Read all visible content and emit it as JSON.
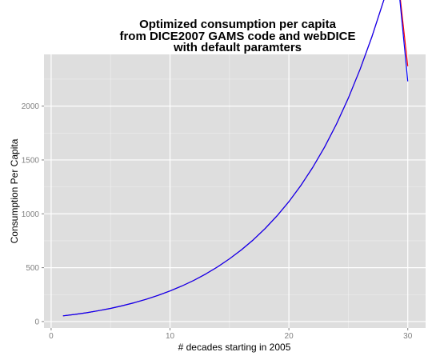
{
  "chart_data": {
    "type": "line",
    "title_lines": [
      "Optimized consumption per capita",
      "from DICE2007 GAMS code and webDICE",
      "with default paramters"
    ],
    "xlabel": "# decades starting in 2005",
    "ylabel": "Consumption Per Capita",
    "xlim": [
      -0.6,
      31.5
    ],
    "ylim": [
      -60,
      2480
    ],
    "xticks": [
      0,
      10,
      20,
      30
    ],
    "yticks": [
      0,
      500,
      1000,
      1500,
      2000
    ],
    "grid": true,
    "legend": "none",
    "panel_color": "#dedede",
    "x": [
      1,
      2,
      3,
      4,
      5,
      6,
      7,
      8,
      9,
      10,
      11,
      12,
      13,
      14,
      15,
      16,
      17,
      18,
      19,
      20,
      21,
      22,
      23,
      24,
      25,
      26,
      27,
      28,
      29,
      30
    ],
    "series": [
      {
        "color": "#ff0000",
        "values": [
          53,
          66,
          82,
          101,
          122,
          147,
          175,
          207,
          243,
          284,
          330,
          382,
          441,
          507,
          582,
          665,
          758,
          863,
          981,
          1113,
          1262,
          1430,
          1619,
          1833,
          2074,
          2345,
          2649,
          2989,
          3368,
          2370
        ]
      },
      {
        "color": "#0000ff",
        "values": [
          53,
          66,
          82,
          101,
          122,
          147,
          175,
          207,
          243,
          284,
          330,
          382,
          441,
          507,
          582,
          665,
          758,
          863,
          981,
          1113,
          1262,
          1430,
          1619,
          1833,
          2074,
          2345,
          2649,
          2989,
          3368,
          2230
        ]
      }
    ]
  }
}
